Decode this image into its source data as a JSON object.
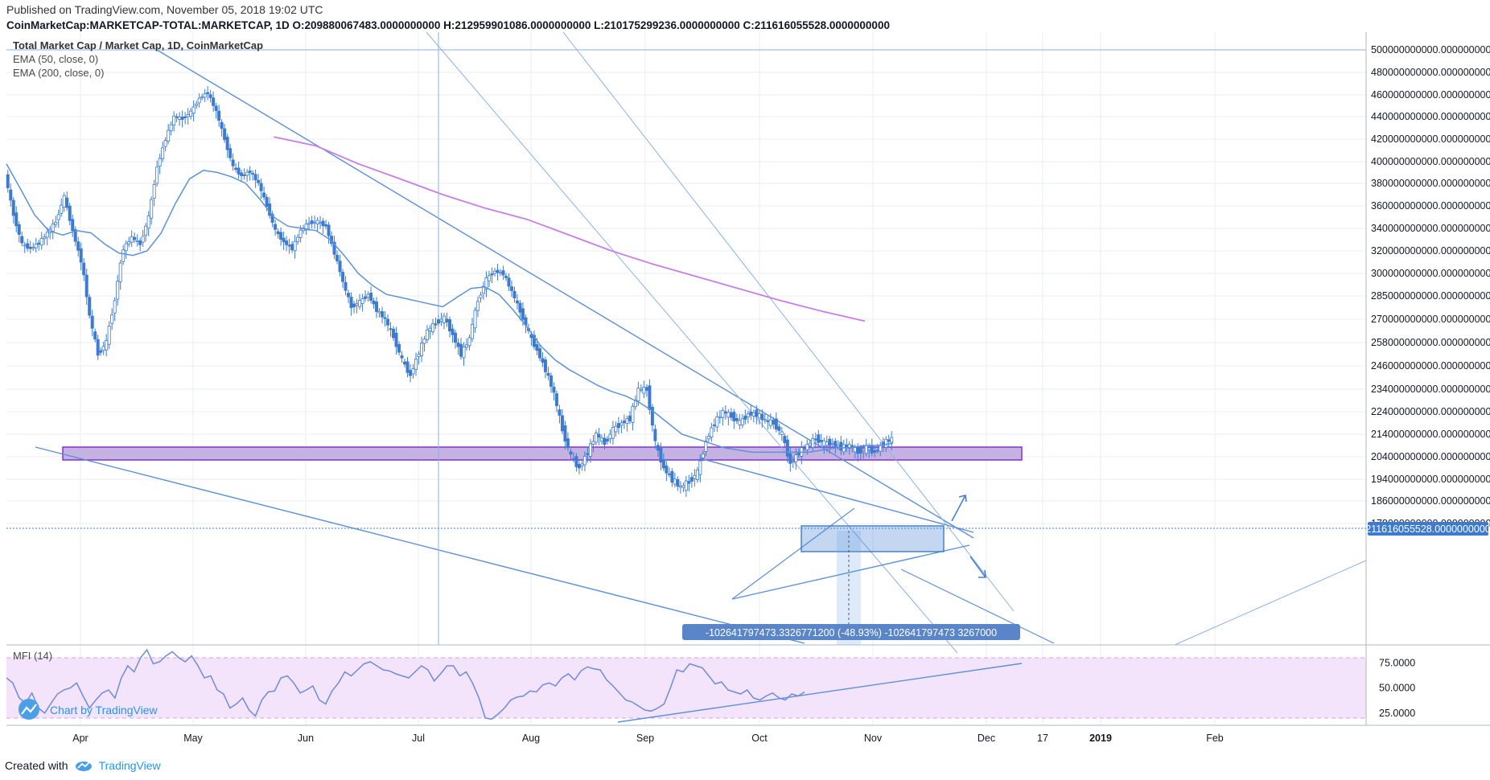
{
  "header": {
    "published": "Published on TradingView.com, November 05, 2018 19:02 UTC",
    "symbol_line": "CoinMarketCap:MARKETCAP-TOTAL:MARKETCAP, 1D  O:209880067483.0000000000  H:212959901086.0000000000  L:210175299236.0000000000  C:211616055528.0000000000"
  },
  "legend": {
    "title": "Total Market Cap / Market Cap, 1D, CoinMarketCap",
    "ema50": "EMA (50, close, 0)",
    "ema200": "EMA (200, close, 0)",
    "mfi": "MFI (14)"
  },
  "watermark": "Chart by TradingView",
  "footer": {
    "created_with": "Created with",
    "brand": "TradingView"
  },
  "measure_label": "-102641797473.3326771200 (-48.93%) -102641797473 3267000",
  "last_price_label": "211616055528.0000000000",
  "colors": {
    "candle": "#3d7bd1",
    "ema50": "#5b93d6",
    "ema200": "#c77ee6",
    "zone_fill": "#c4b3e0",
    "zone_stroke": "#8a2be2",
    "mfi_line": "#6f8bd8",
    "mfi_band": "#f3e3fb",
    "grid": "#e8eef6"
  },
  "chart_data": [
    {
      "type": "candlestick",
      "title": "Total Market Cap / Market Cap, 1D, CoinMarketCap",
      "x_ticks": [
        "Apr",
        "May",
        "Jun",
        "Jul",
        "Aug",
        "Sep",
        "Oct",
        "Nov",
        "Dec",
        "17",
        "2019",
        "Feb"
      ],
      "y_ticks": [
        "500000000000.0000000000",
        "480000000000.0000000000",
        "460000000000.0000000000",
        "440000000000.0000000000",
        "420000000000.0000000000",
        "400000000000.0000000000",
        "380000000000.0000000000",
        "360000000000.0000000000",
        "340000000000.0000000000",
        "320000000000.0000000000",
        "300000000000.0000000000",
        "285000000000.0000000000",
        "270000000000.0000000000",
        "258000000000.0000000000",
        "246000000000.0000000000",
        "234000000000.0000000000",
        "224000000000.0000000000",
        "214000000000.0000000000",
        "204000000000.0000000000",
        "194000000000.0000000000",
        "186000000000.0000000000",
        "178000000000.0000000000"
      ],
      "close_series": [
        [
          0,
          388
        ],
        [
          6,
          352
        ],
        [
          12,
          326
        ],
        [
          18,
          322
        ],
        [
          24,
          327
        ],
        [
          30,
          336
        ],
        [
          36,
          346
        ],
        [
          42,
          368
        ],
        [
          48,
          338
        ],
        [
          54,
          311
        ],
        [
          60,
          272
        ],
        [
          66,
          252
        ],
        [
          72,
          258
        ],
        [
          78,
          282
        ],
        [
          84,
          322
        ],
        [
          90,
          332
        ],
        [
          96,
          326
        ],
        [
          102,
          350
        ],
        [
          108,
          395
        ],
        [
          114,
          420
        ],
        [
          120,
          440
        ],
        [
          126,
          438
        ],
        [
          132,
          444
        ],
        [
          138,
          457
        ],
        [
          144,
          462
        ],
        [
          150,
          445
        ],
        [
          156,
          420
        ],
        [
          162,
          395
        ],
        [
          168,
          387
        ],
        [
          174,
          391
        ],
        [
          180,
          380
        ],
        [
          186,
          360
        ],
        [
          192,
          338
        ],
        [
          198,
          328
        ],
        [
          204,
          322
        ],
        [
          210,
          338
        ],
        [
          216,
          345
        ],
        [
          222,
          346
        ],
        [
          228,
          342
        ],
        [
          234,
          318
        ],
        [
          240,
          294
        ],
        [
          246,
          278
        ],
        [
          252,
          281
        ],
        [
          258,
          286
        ],
        [
          264,
          276
        ],
        [
          270,
          270
        ],
        [
          276,
          261
        ],
        [
          282,
          249
        ],
        [
          288,
          241
        ],
        [
          294,
          253
        ],
        [
          300,
          264
        ],
        [
          306,
          268
        ],
        [
          312,
          271
        ],
        [
          318,
          262
        ],
        [
          324,
          252
        ],
        [
          330,
          260
        ],
        [
          336,
          282
        ],
        [
          342,
          296
        ],
        [
          348,
          302
        ],
        [
          354,
          300
        ],
        [
          360,
          288
        ],
        [
          366,
          275
        ],
        [
          372,
          263
        ],
        [
          378,
          254
        ],
        [
          384,
          244
        ],
        [
          390,
          232
        ],
        [
          396,
          216
        ],
        [
          402,
          204
        ],
        [
          408,
          199
        ],
        [
          414,
          206
        ],
        [
          420,
          214
        ],
        [
          426,
          210
        ],
        [
          432,
          216
        ],
        [
          438,
          219
        ],
        [
          444,
          221
        ],
        [
          450,
          234
        ],
        [
          456,
          234
        ],
        [
          462,
          210
        ],
        [
          468,
          199
        ],
        [
          474,
          194
        ],
        [
          480,
          191
        ],
        [
          486,
          193
        ],
        [
          492,
          197
        ],
        [
          498,
          211
        ],
        [
          504,
          219
        ],
        [
          510,
          224
        ],
        [
          516,
          222
        ],
        [
          522,
          219
        ],
        [
          528,
          223
        ],
        [
          534,
          223
        ],
        [
          540,
          220
        ],
        [
          546,
          219
        ],
        [
          552,
          214
        ],
        [
          558,
          201
        ],
        [
          564,
          206
        ],
        [
          570,
          209
        ],
        [
          576,
          212
        ],
        [
          582,
          210
        ],
        [
          588,
          210
        ],
        [
          594,
          208
        ],
        [
          600,
          209
        ],
        [
          606,
          206
        ],
        [
          612,
          208
        ],
        [
          618,
          206
        ],
        [
          624,
          210
        ],
        [
          630,
          212
        ]
      ],
      "ema50": [
        [
          0,
          398
        ],
        [
          10,
          375
        ],
        [
          20,
          352
        ],
        [
          30,
          338
        ],
        [
          40,
          334
        ],
        [
          50,
          338
        ],
        [
          60,
          336
        ],
        [
          70,
          326
        ],
        [
          80,
          318
        ],
        [
          90,
          316
        ],
        [
          100,
          320
        ],
        [
          110,
          336
        ],
        [
          120,
          362
        ],
        [
          130,
          384
        ],
        [
          140,
          392
        ],
        [
          150,
          390
        ],
        [
          160,
          386
        ],
        [
          170,
          380
        ],
        [
          180,
          366
        ],
        [
          190,
          350
        ],
        [
          200,
          342
        ],
        [
          210,
          340
        ],
        [
          220,
          338
        ],
        [
          230,
          330
        ],
        [
          240,
          316
        ],
        [
          250,
          300
        ],
        [
          260,
          292
        ],
        [
          270,
          286
        ],
        [
          280,
          284
        ],
        [
          290,
          282
        ],
        [
          300,
          280
        ],
        [
          310,
          278
        ],
        [
          320,
          284
        ],
        [
          330,
          290
        ],
        [
          340,
          291
        ],
        [
          350,
          286
        ],
        [
          360,
          276
        ],
        [
          370,
          266
        ],
        [
          380,
          256
        ],
        [
          390,
          249
        ],
        [
          400,
          244
        ],
        [
          410,
          240
        ],
        [
          420,
          236
        ],
        [
          430,
          233
        ],
        [
          440,
          231
        ],
        [
          450,
          228
        ],
        [
          460,
          224
        ],
        [
          470,
          219
        ],
        [
          480,
          214
        ],
        [
          490,
          212
        ],
        [
          500,
          210
        ],
        [
          510,
          208
        ],
        [
          520,
          207
        ],
        [
          530,
          206
        ],
        [
          540,
          206
        ],
        [
          550,
          206
        ],
        [
          560,
          206
        ],
        [
          570,
          206
        ],
        [
          580,
          207
        ],
        [
          590,
          208
        ],
        [
          600,
          208
        ],
        [
          610,
          209
        ],
        [
          620,
          209
        ],
        [
          630,
          210
        ]
      ],
      "ema200": [
        [
          190,
          422
        ],
        [
          220,
          414
        ],
        [
          250,
          398
        ],
        [
          280,
          384
        ],
        [
          310,
          370
        ],
        [
          340,
          358
        ],
        [
          370,
          348
        ],
        [
          400,
          334
        ],
        [
          430,
          320
        ],
        [
          460,
          308
        ],
        [
          490,
          298
        ],
        [
          520,
          290
        ],
        [
          550,
          282
        ],
        [
          580,
          275
        ],
        [
          610,
          269
        ]
      ]
    },
    {
      "type": "line",
      "title": "MFI (14)",
      "y_ticks": [
        "75.0000",
        "50.0000",
        "25.0000"
      ],
      "band": [
        20,
        80
      ],
      "series": [
        {
          "name": "MFI (14)",
          "values": [
            [
              0,
              60
            ],
            [
              8,
              55
            ],
            [
              16,
              40
            ],
            [
              24,
              35
            ],
            [
              32,
              45
            ],
            [
              40,
              30
            ],
            [
              48,
              25
            ],
            [
              56,
              35
            ],
            [
              64,
              44
            ],
            [
              72,
              48
            ],
            [
              80,
              50
            ],
            [
              88,
              55
            ],
            [
              96,
              42
            ],
            [
              104,
              30
            ],
            [
              112,
              38
            ],
            [
              120,
              45
            ],
            [
              128,
              48
            ],
            [
              136,
              40
            ],
            [
              144,
              60
            ],
            [
              152,
              72
            ],
            [
              160,
              66
            ],
            [
              168,
              80
            ],
            [
              176,
              88
            ],
            [
              184,
              74
            ],
            [
              192,
              76
            ],
            [
              200,
              82
            ],
            [
              208,
              86
            ],
            [
              216,
              80
            ],
            [
              224,
              76
            ],
            [
              232,
              82
            ],
            [
              240,
              72
            ],
            [
              248,
              60
            ],
            [
              256,
              62
            ],
            [
              264,
              48
            ],
            [
              272,
              44
            ],
            [
              280,
              30
            ],
            [
              288,
              34
            ],
            [
              296,
              40
            ],
            [
              304,
              28
            ],
            [
              312,
              22
            ],
            [
              320,
              38
            ],
            [
              328,
              46
            ],
            [
              336,
              47
            ],
            [
              344,
              60
            ],
            [
              352,
              62
            ],
            [
              360,
              55
            ],
            [
              368,
              45
            ],
            [
              376,
              48
            ],
            [
              384,
              52
            ],
            [
              392,
              38
            ],
            [
              400,
              34
            ],
            [
              408,
              47
            ],
            [
              416,
              55
            ],
            [
              424,
              66
            ],
            [
              432,
              62
            ],
            [
              440,
              68
            ],
            [
              448,
              74
            ],
            [
              456,
              76
            ],
            [
              464,
              72
            ],
            [
              472,
              68
            ],
            [
              480,
              67
            ],
            [
              488,
              64
            ],
            [
              496,
              62
            ],
            [
              504,
              60
            ],
            [
              512,
              66
            ],
            [
              520,
              72
            ],
            [
              528,
              68
            ],
            [
              536,
              57
            ],
            [
              544,
              64
            ],
            [
              552,
              72
            ],
            [
              560,
              72
            ],
            [
              568,
              62
            ],
            [
              576,
              66
            ],
            [
              584,
              55
            ],
            [
              592,
              40
            ],
            [
              600,
              20
            ],
            [
              608,
              19
            ],
            [
              616,
              24
            ],
            [
              624,
              30
            ],
            [
              632,
              38
            ],
            [
              640,
              41
            ],
            [
              648,
              42
            ],
            [
              656,
              47
            ],
            [
              664,
              46
            ],
            [
              672,
              53
            ],
            [
              680,
              55
            ],
            [
              688,
              52
            ],
            [
              696,
              60
            ],
            [
              704,
              64
            ],
            [
              712,
              58
            ],
            [
              720,
              67
            ],
            [
              728,
              71
            ],
            [
              736,
              69
            ],
            [
              744,
              68
            ],
            [
              752,
              58
            ],
            [
              760,
              52
            ],
            [
              768,
              45
            ],
            [
              776,
              38
            ],
            [
              784,
              36
            ],
            [
              792,
              32
            ],
            [
              800,
              28
            ],
            [
              808,
              27
            ],
            [
              816,
              30
            ],
            [
              824,
              34
            ],
            [
              832,
              50
            ],
            [
              840,
              68
            ],
            [
              848,
              66
            ],
            [
              856,
              74
            ],
            [
              864,
              72
            ],
            [
              872,
              70
            ],
            [
              880,
              62
            ],
            [
              888,
              54
            ],
            [
              896,
              56
            ],
            [
              904,
              48
            ],
            [
              912,
              46
            ],
            [
              920,
              44
            ],
            [
              928,
              48
            ],
            [
              936,
              40
            ],
            [
              944,
              38
            ],
            [
              952,
              42
            ],
            [
              960,
              45
            ],
            [
              968,
              40
            ],
            [
              976,
              38
            ],
            [
              984,
              44
            ],
            [
              992,
              42
            ],
            [
              1000,
              46
            ]
          ]
        }
      ]
    }
  ]
}
